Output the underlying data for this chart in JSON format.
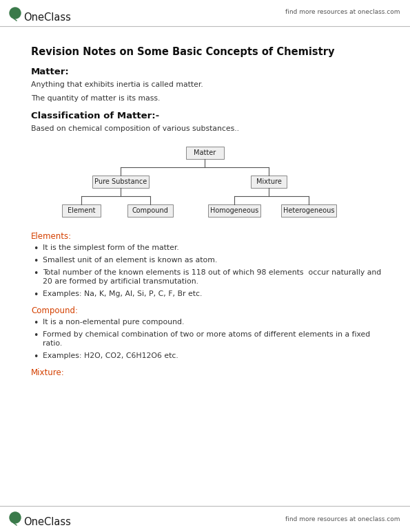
{
  "bg_color": "#ffffff",
  "header_right": "find more resources at oneclass.com",
  "footer_right": "find more resources at oneclass.com",
  "title": "Revision Notes on Some Basic Concepts of Chemistry",
  "section1_header": "Matter:",
  "section1_body": [
    "Anything that exhibits inertia is called matter.",
    "The quantity of matter is its mass."
  ],
  "section2_header": "Classification of Matter:-",
  "section2_body": "Based on chemical composition of various substances..",
  "tree_nodes": {
    "root": "Matter",
    "level2_left": "Pure Substance",
    "level2_right": "Mixture",
    "level3_ll": "Element",
    "level3_lr": "Compound",
    "level3_rl": "Homogeneous",
    "level3_rr": "Heterogeneous"
  },
  "section3_header": "Elements:",
  "section3_header_color": "#d44000",
  "section3_bullets": [
    "It is the simplest form of the matter.",
    "Smallest unit of an element is known as atom.",
    "Total number of the known elements is 118 out of which 98 elements  occur naturally and\n20 are formed by artificial transmutation.",
    "Examples: Na, K, Mg, Al, Si, P, C, F, Br etc."
  ],
  "section4_header": "Compound:",
  "section4_header_color": "#d44000",
  "section4_bullets": [
    "It is a non-elemental pure compound.",
    "Formed by chemical combination of two or more atoms of different elements in a fixed\nratio.",
    "Examples: H2O, CO2, C6H12O6 etc."
  ],
  "section5_header": "Mixture:",
  "section5_header_color": "#d44000",
  "oneclass_green": "#3a7a4a",
  "line_color": "#bbbbbb",
  "box_bg": "#eeeeee",
  "box_border": "#888888",
  "text_color": "#222222",
  "bullet_char": "•"
}
